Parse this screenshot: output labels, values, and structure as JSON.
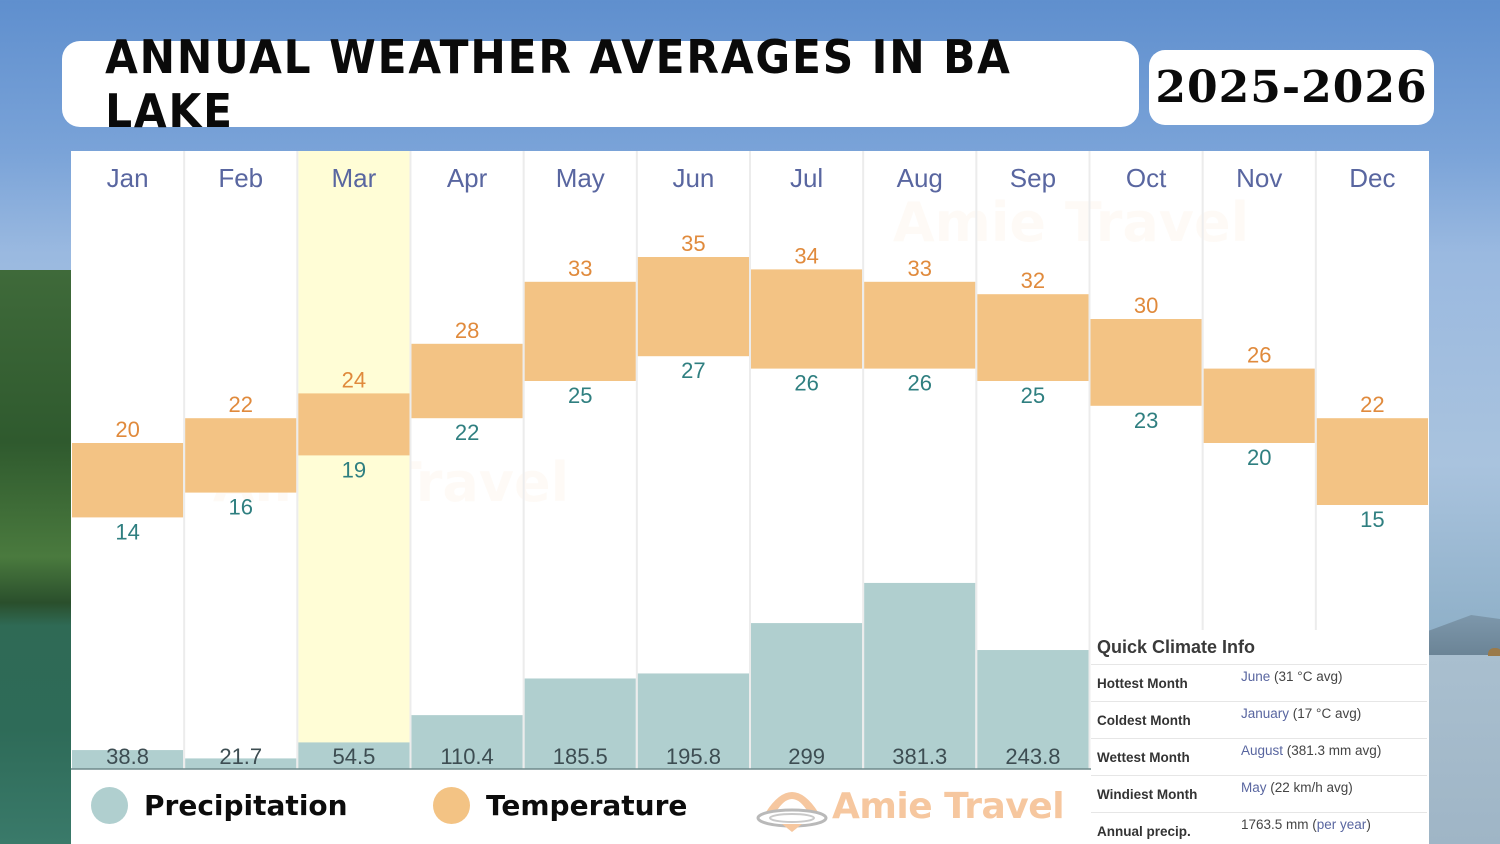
{
  "header": {
    "title": "ANNUAL WEATHER AVERAGES IN BA LAKE",
    "year_range": "2025-2026"
  },
  "legend": {
    "items": [
      {
        "label": "Precipitation",
        "color": "#b0cfcf"
      },
      {
        "label": "Temperature",
        "color": "#f3c384"
      }
    ],
    "brand": "Amie Travel"
  },
  "climate_info": {
    "title": "Quick Climate Info",
    "rows": [
      {
        "key": "Hottest Month",
        "link": "June",
        "value": " (31 °C avg)",
        "suffix_link": ""
      },
      {
        "key": "Coldest Month",
        "link": "January",
        "value": " (17 °C avg)",
        "suffix_link": ""
      },
      {
        "key": "Wettest Month",
        "link": "August",
        "value": " (381.3 mm avg)",
        "suffix_link": ""
      },
      {
        "key": "Windiest Month",
        "link": "May",
        "value": " (22 km/h avg)",
        "suffix_link": ""
      },
      {
        "key": "Annual precip.",
        "link": "",
        "value": "1763.5 mm (",
        "suffix_link": "per year",
        "tail": ")"
      }
    ]
  },
  "colors": {
    "temperature_bar": "#f3c384",
    "precip_bar": "#b0cfcf",
    "highlight_column": "#fffdd6",
    "high_label": "#e08a3c",
    "low_label": "#2f7f80",
    "month_label": "#5966a0"
  },
  "chart_data": {
    "type": "bar",
    "title": "ANNUAL WEATHER AVERAGES IN BA LAKE",
    "subtitle": "2025-2026",
    "categories": [
      "Jan",
      "Feb",
      "Mar",
      "Apr",
      "May",
      "Jun",
      "Jul",
      "Aug",
      "Sep",
      "Oct",
      "Nov",
      "Dec"
    ],
    "highlighted_category": "Mar",
    "series": [
      {
        "name": "Temperature high (°C)",
        "values": [
          20,
          22,
          24,
          28,
          33,
          35,
          34,
          33,
          32,
          30,
          26,
          22
        ]
      },
      {
        "name": "Temperature low (°C)",
        "values": [
          14,
          16,
          19,
          22,
          25,
          27,
          26,
          26,
          25,
          23,
          20,
          15
        ]
      },
      {
        "name": "Precipitation (mm)",
        "values": [
          38.8,
          21.7,
          54.5,
          110.4,
          185.5,
          195.8,
          299,
          381.3,
          243.8,
          null,
          null,
          null
        ]
      }
    ],
    "legend": [
      "Precipitation",
      "Temperature"
    ],
    "legend_position": "bottom-left",
    "grid": false,
    "xlabel": "",
    "ylabel": ""
  }
}
